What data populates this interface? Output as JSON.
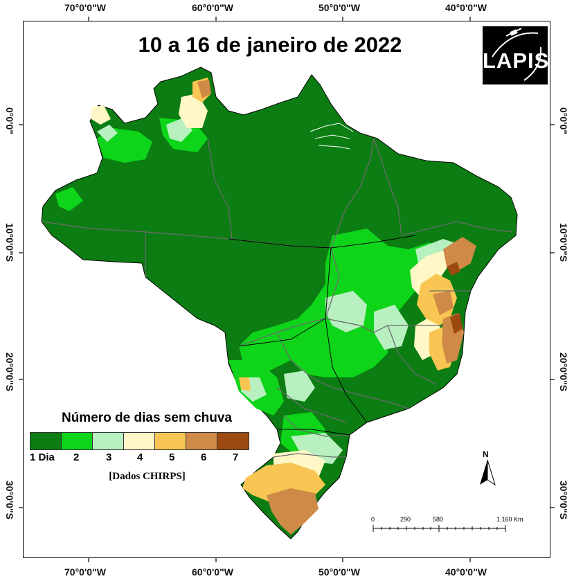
{
  "title": "10 a 16 de janeiro de 2022",
  "logo": {
    "text": "LAPIS"
  },
  "longitude_ticks": [
    "70°0'0\"W",
    "60°0'0\"W",
    "50°0'0\"W",
    "40°0'0\"W"
  ],
  "latitude_ticks": [
    "0°0'0\"",
    "10°0'0\"S",
    "20°0'0\"S",
    "30°0'0\"S"
  ],
  "legend": {
    "title": "Número de dias sem chuva",
    "labels": [
      "1 Dia",
      "2",
      "3",
      "4",
      "5",
      "6",
      "7"
    ],
    "colors": [
      "#0b7d12",
      "#0ed41a",
      "#b8f0c0",
      "#fff8c6",
      "#f9c653",
      "#cf8a48",
      "#9c4a0f"
    ],
    "source": "[Dados CHIRPS]"
  },
  "north_arrow": {
    "label": "N"
  },
  "scale_bar": {
    "labels": [
      "0",
      "290",
      "580",
      "1.160 Km"
    ]
  }
}
